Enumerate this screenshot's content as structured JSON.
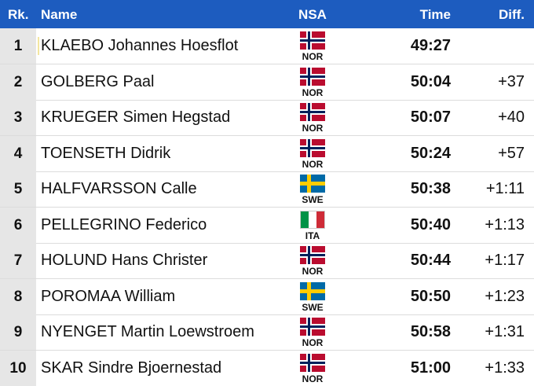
{
  "table": {
    "header": [
      "Rk.",
      "Name",
      "NSA",
      "Time",
      "Diff."
    ],
    "rows": [
      {
        "rank": "1",
        "name": "KLAEBO Johannes Hoesflot",
        "nsa": "NOR",
        "time": "49:27"
      },
      {
        "rank": "2",
        "name": "GOLBERG Paal",
        "nsa": "NOR",
        "time": "50:04",
        "diff": "+37"
      },
      {
        "rank": "3",
        "name": "KRUEGER Simen Hegstad",
        "nsa": "NOR",
        "time": "50:07",
        "diff": "+40"
      },
      {
        "rank": "4",
        "name": "TOENSETH Didrik",
        "nsa": "NOR",
        "time": "50:24",
        "diff": "+57"
      },
      {
        "rank": "5",
        "name": "HALFVARSSON Calle",
        "nsa": "SWE",
        "time": "50:38",
        "diff": "+1:11"
      },
      {
        "rank": "6",
        "name": "PELLEGRINO Federico",
        "nsa": "ITA",
        "time": "50:40",
        "diff": "+1:13"
      },
      {
        "rank": "7",
        "name": "HOLUND Hans Christer",
        "nsa": "NOR",
        "time": "50:44",
        "diff": "+1:17"
      },
      {
        "rank": "8",
        "name": "POROMAA William",
        "nsa": "SWE",
        "time": "50:50",
        "diff": "+1:23"
      },
      {
        "rank": "9",
        "name": "NYENGET Martin Loewstroem",
        "nsa": "NOR",
        "time": "50:58",
        "diff": "+1:31"
      },
      {
        "rank": "10",
        "name": "SKAR Sindre Bjoernestad",
        "nsa": "NOR",
        "time": "51:00",
        "diff": "+1:33"
      }
    ]
  }
}
